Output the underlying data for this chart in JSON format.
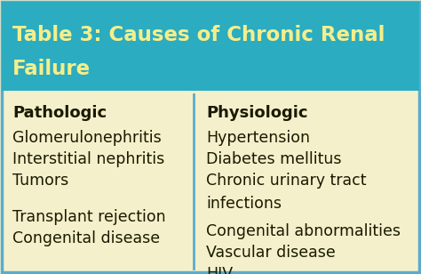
{
  "title_line1": "Table 3: Causes of Chronic Renal",
  "title_line2": "Failure",
  "title_bg_color": "#2BACC0",
  "title_text_color": "#F5EE8A",
  "body_bg_color": "#F5F0CC",
  "divider_color": "#5AACCC",
  "border_color": "#5AACCC",
  "header_text_color": "#1A1A00",
  "body_text_color": "#1A1A00",
  "col1_header": "Pathologic",
  "col2_header": "Physiologic",
  "col1_items": [
    "Glomerulonephritis",
    "Interstitial nephritis",
    "Tumors",
    "",
    "Transplant rejection",
    "Congenital disease"
  ],
  "col2_items": [
    "Hypertension",
    "Diabetes mellitus",
    "Chronic urinary tract",
    "infections",
    "Congenital abnormalities",
    "Vascular disease",
    "HIV"
  ],
  "title_fontsize": 16.5,
  "header_fontsize": 13,
  "body_fontsize": 12.5,
  "fig_width": 4.74,
  "fig_height": 3.08,
  "dpi": 100
}
